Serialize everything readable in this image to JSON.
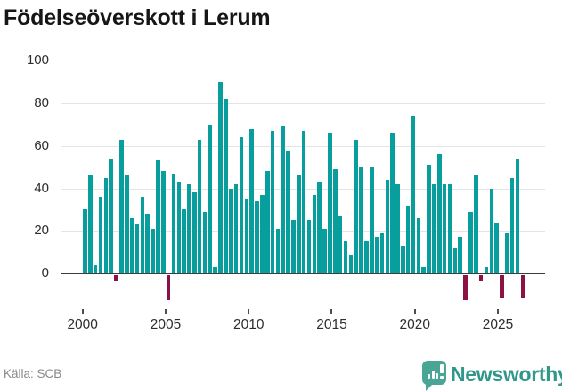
{
  "title": "Födelseöverskott i Lerum",
  "source": "Källa: SCB",
  "branding": {
    "name": "Newsworthy"
  },
  "colors": {
    "positive_bar": "#099e9e",
    "negative_bar": "#8c1245",
    "axis": "#3c3c3c",
    "grid": "#e4e4e4",
    "brand_teal": "#2f988a"
  },
  "chart_data": {
    "type": "bar",
    "title": "Födelseöverskott i Lerum",
    "x_tick_labels": [
      "2000",
      "2005",
      "2010",
      "2015",
      "2020",
      "2025"
    ],
    "y_ticks": [
      0,
      20,
      40,
      60,
      80,
      100
    ],
    "ylim": [
      -15,
      100
    ],
    "grid": true,
    "legend": "none",
    "values": [
      30,
      46,
      4,
      36,
      45,
      54,
      -3,
      63,
      46,
      26,
      23,
      36,
      28,
      21,
      53,
      48,
      -12,
      47,
      43,
      30,
      42,
      38,
      63,
      29,
      70,
      3,
      90,
      82,
      40,
      42,
      64,
      35,
      68,
      34,
      37,
      48,
      67,
      21,
      69,
      58,
      25,
      46,
      67,
      25,
      37,
      43,
      21,
      66,
      49,
      27,
      15,
      9,
      63,
      50,
      15,
      50,
      17,
      19,
      44,
      66,
      42,
      13,
      32,
      74,
      26,
      3,
      51,
      42,
      56,
      42,
      42,
      12,
      17,
      -12,
      29,
      46,
      -3,
      3,
      40,
      24,
      -11,
      19,
      45,
      54,
      -11
    ]
  }
}
